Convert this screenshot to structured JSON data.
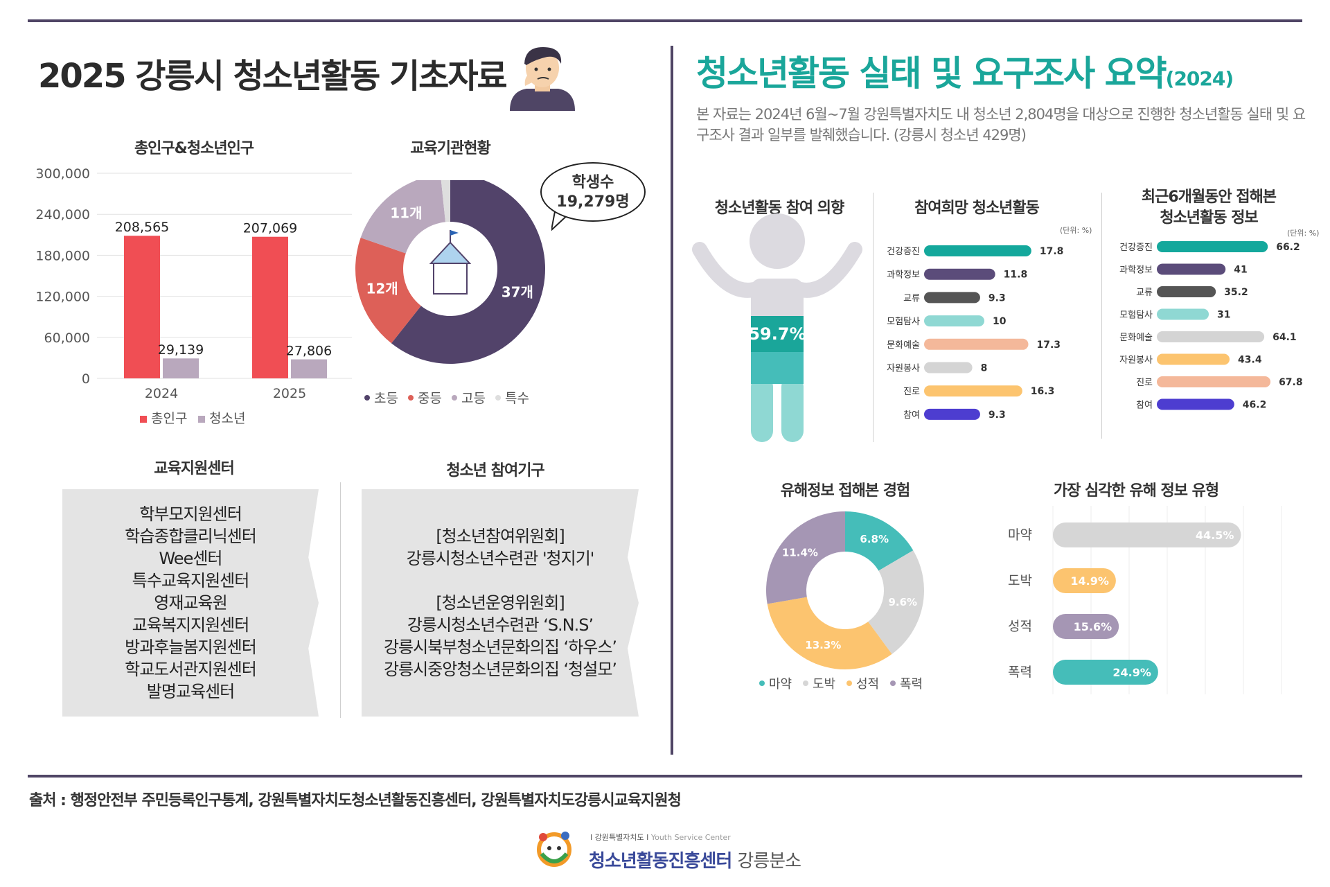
{
  "left": {
    "title": "2025 강릉시 청소년활동 기초자료",
    "population_title": "총인구&청소년인구",
    "education_title": "교육기관현황",
    "bubble_line1": "학생수",
    "bubble_line2": "19,279명",
    "support_title": "교육지원센터",
    "support_centers": [
      "학부모지원센터",
      "학습종합클리닉센터",
      "Wee센터",
      "특수교육지원센터",
      "영재교육원",
      "교육복지지원센터",
      "방과후늘봄지원센터",
      "학교도서관지원센터",
      "발명교육센터"
    ],
    "participation_title": "청소년 참여기구",
    "participation_lines": [
      "[청소년참여위원회]",
      "강릉시청소년수련관 '청지기'",
      "",
      "[청소년운영위원회]",
      "강릉시청소년수련관 ‘S.N.S’",
      "강릉시북부청소년문화의집 ‘하우스’",
      "강릉시중앙청소년문화의집 ‘청설모’"
    ]
  },
  "right": {
    "title": "청소년활동 실태 및 요구조사 요약",
    "title_year": "(2024)",
    "intro": "본 자료는 2024년 6월~7월 강원특별자치도 내 청소년 2,804명을 대상으로 진행한 청소년활동 실태 및 요구조사 결과 일부를 발췌했습니다. (강릉시 청소년 429명)",
    "intent_title": "청소년활동 참여 의향",
    "hope_title": "참여희망 청소년활동",
    "recent_title_1": "최근6개월동안 접해본",
    "recent_title_2": "청소년활동 정보",
    "unit": "(단위: %)",
    "harm_exp_title": "유해정보 접해본 경험",
    "harm_type_title": "가장 심각한 유해 정보 유형"
  },
  "footer": {
    "source": "출처 :  행정안전부 주민등록인구통계, 강원특별자치도청소년활동진흥센터, 강원특별자치도강릉시교육지원청",
    "logo_small": "I 강원특별자치도 I",
    "logo_small_en": "Youth Service Center",
    "logo_main": "청소년활동진흥센터",
    "logo_branch": "강릉분소"
  },
  "chart_data": [
    {
      "type": "bar",
      "title": "총인구&청소년인구",
      "categories": [
        "2024",
        "2025"
      ],
      "series": [
        {
          "name": "총인구",
          "values": [
            208565,
            207069
          ],
          "labels": [
            "208,565",
            "207,069"
          ],
          "color": "#f04e54"
        },
        {
          "name": "청소년",
          "values": [
            29139,
            27806
          ],
          "labels": [
            "29,139",
            "27,806"
          ],
          "color": "#b9a8bd"
        }
      ],
      "yticks": [
        "0",
        "60,000",
        "120,000",
        "180,000",
        "240,000",
        "300,000"
      ],
      "ylim": [
        0,
        300000
      ]
    },
    {
      "type": "pie",
      "title": "교육기관현황",
      "slices": [
        {
          "name": "초등",
          "value": 37,
          "label": "37개",
          "color": "#52436a"
        },
        {
          "name": "중등",
          "value": 12,
          "label": "12개",
          "color": "#dd6058"
        },
        {
          "name": "고등",
          "value": 11,
          "label": "11개",
          "color": "#b9a8bd"
        },
        {
          "name": "특수",
          "value": 1,
          "label": "",
          "color": "#dedede"
        }
      ]
    },
    {
      "type": "bar",
      "title": "청소년활동 참여 의향",
      "values": [
        59.7
      ],
      "labels": [
        "59.7%"
      ]
    },
    {
      "type": "bar",
      "title": "참여희망 청소년활동",
      "orientation": "horizontal",
      "categories": [
        "건강증진",
        "과학정보",
        "교류",
        "모험탐사",
        "문화예술",
        "자원봉사",
        "진로",
        "참여"
      ],
      "values": [
        17.8,
        11.8,
        9.3,
        10,
        17.3,
        8,
        16.3,
        9.3
      ],
      "labels": [
        "17.8",
        "11.8",
        "9.3",
        "10",
        "17.3",
        "8",
        "16.3",
        "9.3"
      ],
      "colors": [
        "#14a89c",
        "#5b4c7a",
        "#555555",
        "#8fd8d3",
        "#f4b89a",
        "#d4d4d4",
        "#fcc46f",
        "#4d3dd0"
      ]
    },
    {
      "type": "bar",
      "title": "최근6개월동안 접해본 청소년활동 정보",
      "orientation": "horizontal",
      "categories": [
        "건강증진",
        "과학정보",
        "교류",
        "모험탐사",
        "문화예술",
        "자원봉사",
        "진로",
        "참여"
      ],
      "values": [
        66.2,
        41,
        35.2,
        31,
        64.1,
        43.4,
        67.8,
        46.2
      ],
      "labels": [
        "66.2",
        "41",
        "35.2",
        "31",
        "64.1",
        "43.4",
        "67.8",
        "46.2"
      ],
      "colors": [
        "#14a89c",
        "#5b4c7a",
        "#555555",
        "#8fd8d3",
        "#d4d4d4",
        "#fcc46f",
        "#f4b89a",
        "#4d3dd0"
      ]
    },
    {
      "type": "pie",
      "title": "유해정보 접해본 경험",
      "slices": [
        {
          "name": "마약",
          "value": 6.8,
          "label": "6.8%",
          "color": "#45bdb9"
        },
        {
          "name": "도박",
          "value": 9.6,
          "label": "9.6%",
          "color": "#d6d6d6"
        },
        {
          "name": "성적",
          "value": 13.3,
          "label": "13.3%",
          "color": "#fcc46f"
        },
        {
          "name": "폭력",
          "value": 11.4,
          "label": "11.4%",
          "color": "#a596b4"
        }
      ]
    },
    {
      "type": "bar",
      "title": "가장 심각한 유해 정보 유형",
      "orientation": "horizontal",
      "categories": [
        "마약",
        "도박",
        "성적",
        "폭력"
      ],
      "values": [
        44.5,
        14.9,
        15.6,
        24.9
      ],
      "labels": [
        "44.5%",
        "14.9%",
        "15.6%",
        "24.9%"
      ],
      "colors": [
        "#d6d6d6",
        "#fcc46f",
        "#a596b4",
        "#45bdb9"
      ]
    }
  ]
}
